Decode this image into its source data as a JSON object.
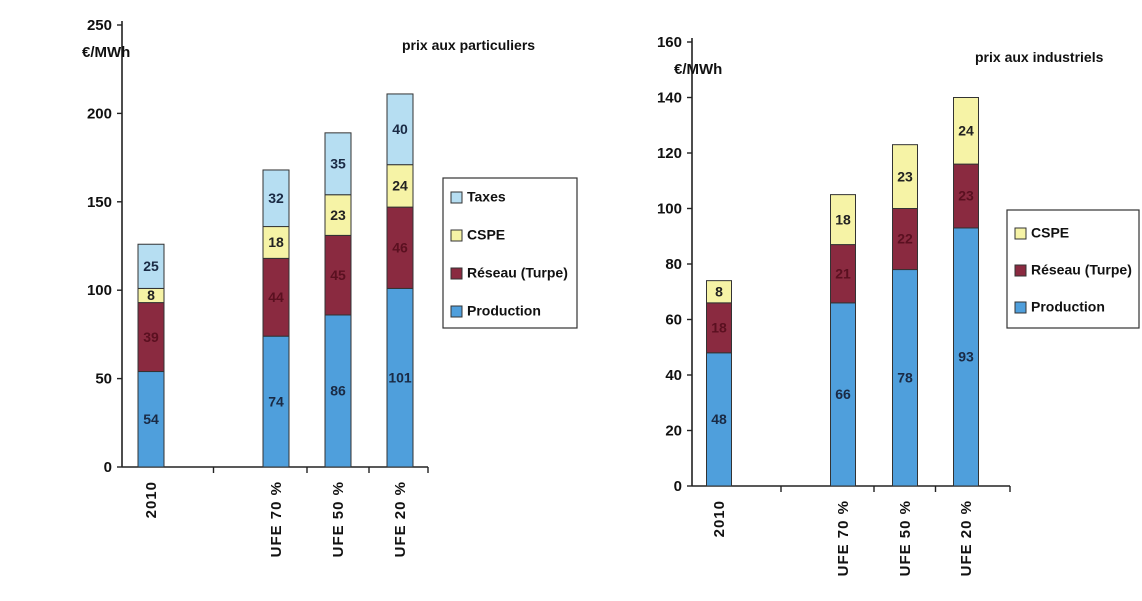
{
  "colors": {
    "Production": "#4f9fdc",
    "Réseau (Turpe)": "#8a2a40",
    "CSPE": "#f6f3a6",
    "Taxes": "#b6def2"
  },
  "label_colors": {
    "Production": "#1a2a44",
    "Réseau (Turpe)": "#5a1020",
    "CSPE": "#222222",
    "Taxes": "#1a2a44"
  },
  "chart_data": [
    {
      "type": "bar",
      "stacked": true,
      "title": "prix aux particuliers",
      "ylabel": "€/MWh",
      "ylim": [
        0,
        250
      ],
      "yticks": [
        0,
        50,
        100,
        150,
        200,
        250
      ],
      "categories": [
        "2010",
        "UFE 70 %",
        "UFE 50 %",
        "UFE 20 %"
      ],
      "series": [
        {
          "name": "Production",
          "values": [
            54,
            74,
            86,
            101
          ]
        },
        {
          "name": "Réseau (Turpe)",
          "values": [
            39,
            44,
            45,
            46
          ]
        },
        {
          "name": "CSPE",
          "values": [
            8,
            18,
            23,
            24
          ]
        },
        {
          "name": "Taxes",
          "values": [
            25,
            32,
            35,
            40
          ]
        }
      ],
      "legend": [
        "Taxes",
        "CSPE",
        "Réseau (Turpe)",
        "Production"
      ],
      "legend_position": "right",
      "grid": false
    },
    {
      "type": "bar",
      "stacked": true,
      "title": "prix aux industriels",
      "ylabel": "€/MWh",
      "ylim": [
        0,
        160
      ],
      "yticks": [
        0,
        20,
        40,
        60,
        80,
        100,
        120,
        140,
        160
      ],
      "categories": [
        "2010",
        "UFE 70 %",
        "UFE 50 %",
        "UFE 20 %"
      ],
      "series": [
        {
          "name": "Production",
          "values": [
            48,
            66,
            78,
            93
          ]
        },
        {
          "name": "Réseau (Turpe)",
          "values": [
            18,
            21,
            22,
            23
          ]
        },
        {
          "name": "CSPE",
          "values": [
            8,
            18,
            23,
            24
          ]
        }
      ],
      "legend": [
        "CSPE",
        "Réseau (Turpe)",
        "Production"
      ],
      "legend_position": "right",
      "grid": false
    }
  ]
}
